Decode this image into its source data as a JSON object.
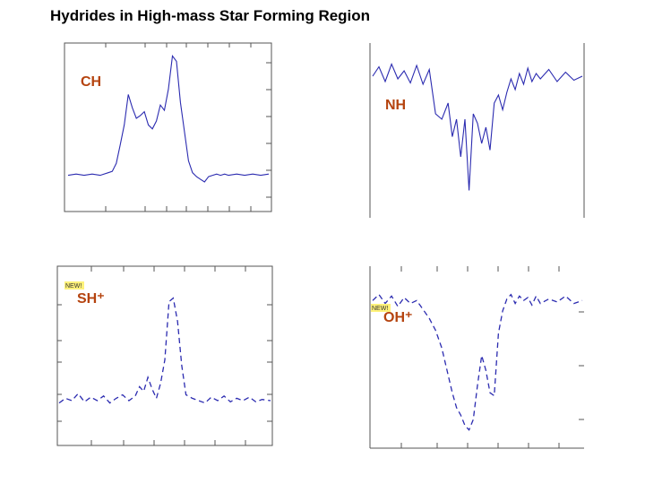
{
  "slide_title": "Hydrides in High-mass Star Forming Region",
  "colors": {
    "trace": "#2b2bb0",
    "frame": "#555555",
    "label": "#b5430e",
    "badge": "#fff27a"
  },
  "chart_data": [
    {
      "type": "line",
      "label": "CH",
      "trace": "emission",
      "x": [
        0,
        4,
        8,
        12,
        16,
        20,
        22,
        24,
        26,
        28,
        30,
        32,
        34,
        36,
        38,
        40,
        42,
        44,
        46,
        48,
        50,
        52,
        54,
        56,
        58,
        60,
        62,
        64,
        66,
        68,
        70,
        72,
        74,
        76,
        78,
        80,
        84,
        88,
        92,
        96,
        100
      ],
      "y": [
        0.07,
        0.08,
        0.07,
        0.08,
        0.07,
        0.09,
        0.1,
        0.16,
        0.3,
        0.45,
        0.68,
        0.58,
        0.5,
        0.52,
        0.55,
        0.45,
        0.42,
        0.48,
        0.6,
        0.56,
        0.72,
        0.97,
        0.93,
        0.62,
        0.4,
        0.18,
        0.09,
        0.06,
        0.04,
        0.02,
        0.06,
        0.07,
        0.08,
        0.07,
        0.08,
        0.07,
        0.08,
        0.07,
        0.08,
        0.07,
        0.08
      ]
    },
    {
      "type": "line",
      "label": "NH",
      "trace": "absorption",
      "x": [
        0,
        3,
        6,
        9,
        12,
        15,
        18,
        21,
        24,
        27,
        30,
        33,
        36,
        38,
        40,
        42,
        44,
        46,
        48,
        50,
        52,
        54,
        56,
        58,
        60,
        62,
        64,
        66,
        68,
        70,
        72,
        74,
        76,
        78,
        80,
        84,
        88,
        92,
        96,
        100
      ],
      "y": [
        0.9,
        0.97,
        0.86,
        0.99,
        0.88,
        0.94,
        0.85,
        0.98,
        0.84,
        0.95,
        0.62,
        0.58,
        0.7,
        0.45,
        0.58,
        0.3,
        0.58,
        0.05,
        0.62,
        0.55,
        0.4,
        0.52,
        0.35,
        0.7,
        0.76,
        0.65,
        0.78,
        0.88,
        0.8,
        0.92,
        0.84,
        0.96,
        0.86,
        0.92,
        0.88,
        0.95,
        0.86,
        0.93,
        0.87,
        0.9
      ]
    },
    {
      "type": "line",
      "label": "SH⁺",
      "trace": "emission",
      "badge": "NEW!",
      "x": [
        0,
        3,
        6,
        9,
        12,
        15,
        18,
        21,
        24,
        27,
        30,
        33,
        36,
        38,
        40,
        42,
        44,
        46,
        48,
        50,
        52,
        54,
        56,
        58,
        60,
        63,
        66,
        69,
        72,
        75,
        78,
        81,
        84,
        87,
        90,
        93,
        96,
        100
      ],
      "y": [
        0.08,
        0.12,
        0.1,
        0.16,
        0.09,
        0.13,
        0.1,
        0.14,
        0.08,
        0.12,
        0.15,
        0.1,
        0.14,
        0.22,
        0.18,
        0.3,
        0.2,
        0.12,
        0.25,
        0.45,
        0.95,
        0.98,
        0.78,
        0.4,
        0.15,
        0.12,
        0.1,
        0.08,
        0.13,
        0.1,
        0.14,
        0.09,
        0.12,
        0.1,
        0.13,
        0.09,
        0.11,
        0.1
      ]
    },
    {
      "type": "line",
      "label": "OH⁺",
      "trace": "absorption",
      "badge": "NEW!",
      "x": [
        0,
        3,
        6,
        9,
        12,
        15,
        18,
        21,
        24,
        27,
        30,
        33,
        36,
        38,
        40,
        42,
        44,
        46,
        48,
        50,
        52,
        54,
        56,
        58,
        60,
        62,
        64,
        66,
        68,
        70,
        72,
        74,
        76,
        78,
        80,
        84,
        88,
        92,
        96,
        100
      ],
      "y": [
        0.92,
        0.96,
        0.9,
        0.95,
        0.88,
        0.94,
        0.9,
        0.92,
        0.86,
        0.8,
        0.72,
        0.6,
        0.42,
        0.3,
        0.2,
        0.15,
        0.08,
        0.05,
        0.12,
        0.35,
        0.55,
        0.45,
        0.3,
        0.28,
        0.7,
        0.85,
        0.93,
        0.96,
        0.9,
        0.95,
        0.92,
        0.94,
        0.89,
        0.95,
        0.9,
        0.93,
        0.91,
        0.95,
        0.9,
        0.92
      ]
    }
  ]
}
